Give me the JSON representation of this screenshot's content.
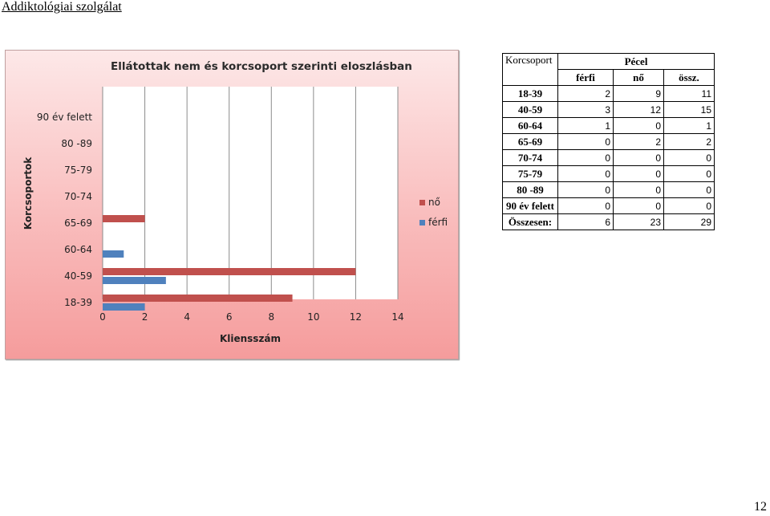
{
  "header": {
    "title": "Addiktológiai szolgálat"
  },
  "page_number": "12",
  "chart_data": {
    "type": "bar",
    "orientation": "horizontal",
    "title": "Ellátottak nem és korcsoport szerinti eloszlásban",
    "xlabel": "Kliensszám",
    "ylabel": "Korcsoportok",
    "categories": [
      "18-39",
      "40-59",
      "60-64",
      "65-69",
      "70-74",
      "75-79",
      "80 -89",
      "90 év felett"
    ],
    "series": [
      {
        "name": "nő",
        "color": "#c0504d",
        "values": [
          9,
          12,
          0,
          2,
          0,
          0,
          0,
          0
        ]
      },
      {
        "name": "férfi",
        "color": "#4f81bd",
        "values": [
          2,
          3,
          1,
          0,
          0,
          0,
          0,
          0
        ]
      }
    ],
    "xlim": [
      0,
      14
    ],
    "xticks": [
      "0",
      "2",
      "4",
      "6",
      "8",
      "10",
      "12",
      "14"
    ],
    "grid": true,
    "legend": "right"
  },
  "table": {
    "corner": "Korcsoport",
    "location": "Pécel",
    "columns": [
      "férfi",
      "nő",
      "össz."
    ],
    "rows": [
      {
        "label": "18-39",
        "values": [
          "2",
          "9",
          "11"
        ]
      },
      {
        "label": "40-59",
        "values": [
          "3",
          "12",
          "15"
        ]
      },
      {
        "label": "60-64",
        "values": [
          "1",
          "0",
          "1"
        ]
      },
      {
        "label": "65-69",
        "values": [
          "0",
          "2",
          "2"
        ]
      },
      {
        "label": "70-74",
        "values": [
          "0",
          "0",
          "0"
        ]
      },
      {
        "label": "75-79",
        "values": [
          "0",
          "0",
          "0"
        ]
      },
      {
        "label": "80 -89",
        "values": [
          "0",
          "0",
          "0"
        ]
      },
      {
        "label": "90 év felett",
        "values": [
          "0",
          "0",
          "0"
        ]
      }
    ],
    "total": {
      "label": "Összesen:",
      "values": [
        "6",
        "23",
        "29"
      ]
    }
  }
}
